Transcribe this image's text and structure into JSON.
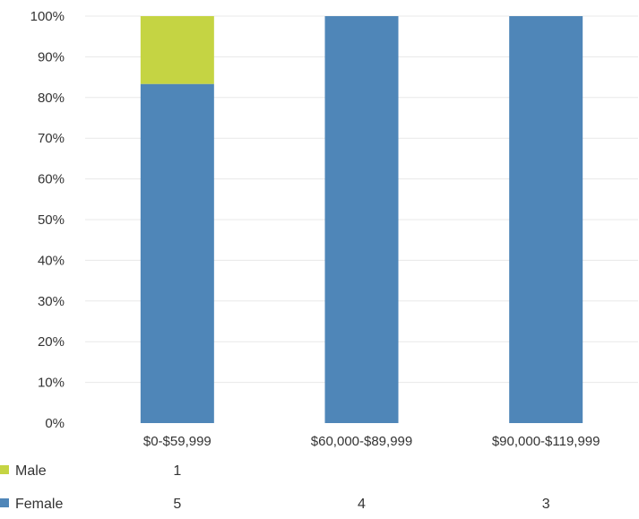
{
  "chart_data": {
    "type": "bar",
    "stacked": "percent",
    "categories": [
      "$0-$59,999",
      "$60,000-$89,999",
      "$90,000-$119,999"
    ],
    "series": [
      {
        "name": "Male",
        "values": [
          1,
          0,
          0
        ],
        "labels": [
          "1",
          "",
          ""
        ],
        "color": "#c5d443"
      },
      {
        "name": "Female",
        "values": [
          5,
          4,
          3
        ],
        "labels": [
          "5",
          "4",
          "3"
        ],
        "color": "#4f86b8"
      }
    ],
    "yticks": [
      "0%",
      "10%",
      "20%",
      "30%",
      "40%",
      "50%",
      "60%",
      "70%",
      "80%",
      "90%",
      "100%"
    ],
    "ylim": [
      0,
      100
    ],
    "grid": true,
    "legend": "bottom data table"
  }
}
